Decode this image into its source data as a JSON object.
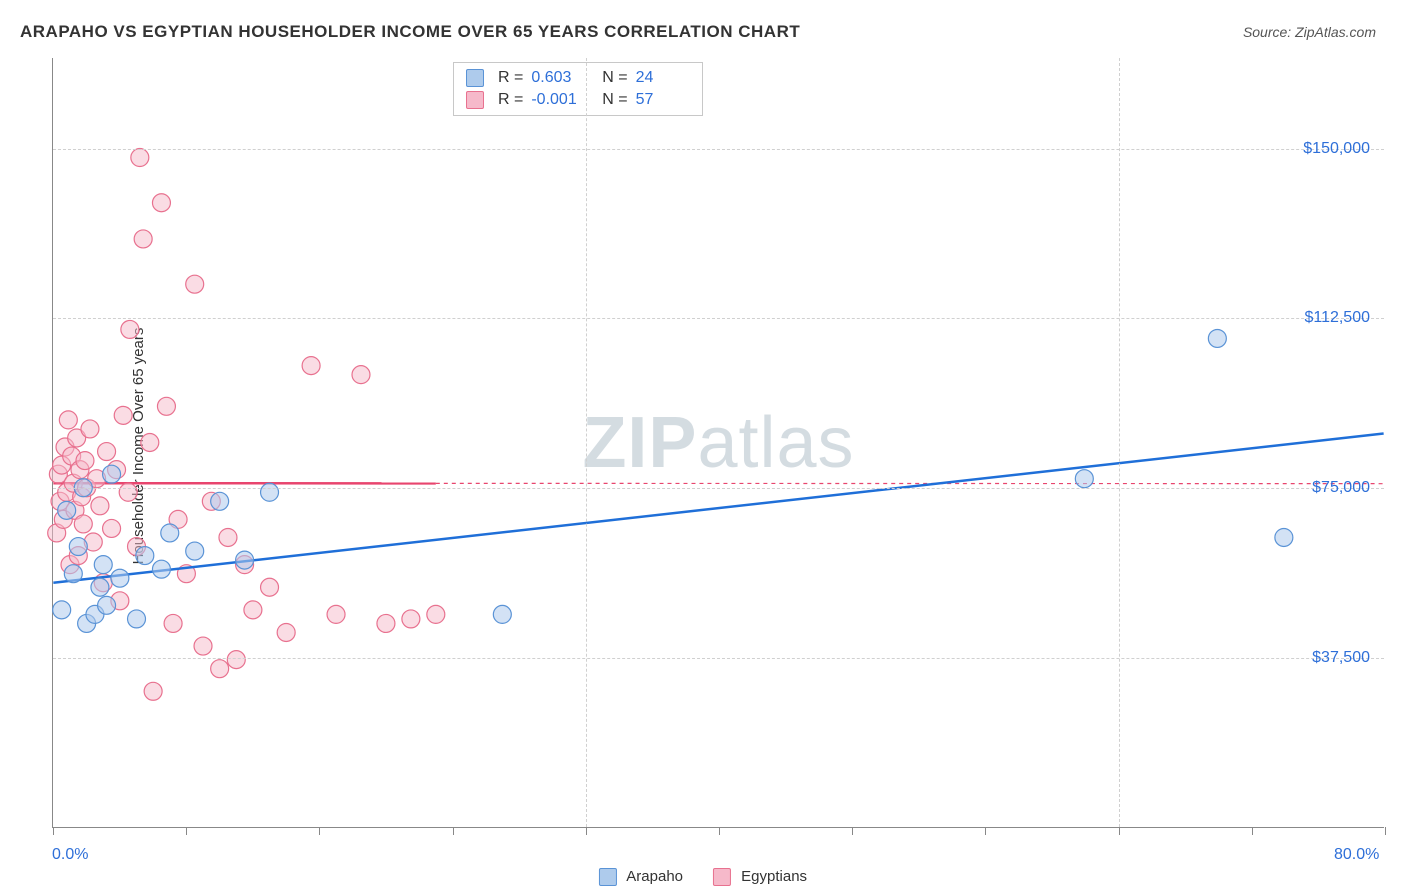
{
  "title": "ARAPAHO VS EGYPTIAN HOUSEHOLDER INCOME OVER 65 YEARS CORRELATION CHART",
  "source": "Source: ZipAtlas.com",
  "yaxis_title": "Householder Income Over 65 years",
  "watermark_a": "ZIP",
  "watermark_b": "atlas",
  "chart": {
    "type": "scatter",
    "xlim": [
      0,
      80
    ],
    "ylim": [
      0,
      170000
    ],
    "x_unit": "%",
    "y_unit": "$",
    "ytick_values": [
      37500,
      75000,
      112500,
      150000
    ],
    "ytick_labels": [
      "$37,500",
      "$75,000",
      "$112,500",
      "$150,000"
    ],
    "xtick_positions": [
      0,
      8,
      16,
      24,
      32,
      40,
      48,
      56,
      64,
      72,
      80
    ],
    "xlabel_min": "0.0%",
    "xlabel_max": "80.0%",
    "grid_color": "#d0d0d0",
    "background_color": "#ffffff",
    "marker_radius": 9,
    "marker_stroke_width": 1.2,
    "trend_line_width": 2.5,
    "trend_dash_width": 1.2,
    "series": [
      {
        "name": "Arapaho",
        "fill": "#aecbec",
        "stroke": "#5a93d6",
        "fill_opacity": 0.55,
        "r_value": "0.603",
        "n_value": "24",
        "trend": {
          "y_at_xmin": 54000,
          "y_at_xmax": 87000,
          "solid_until_x": 80,
          "line_color": "#1f6fd8"
        },
        "points": [
          [
            0.5,
            48000
          ],
          [
            0.8,
            70000
          ],
          [
            1.2,
            56000
          ],
          [
            1.5,
            62000
          ],
          [
            1.8,
            75000
          ],
          [
            2.0,
            45000
          ],
          [
            2.5,
            47000
          ],
          [
            2.8,
            53000
          ],
          [
            3.0,
            58000
          ],
          [
            3.2,
            49000
          ],
          [
            3.5,
            78000
          ],
          [
            4.0,
            55000
          ],
          [
            5.0,
            46000
          ],
          [
            5.5,
            60000
          ],
          [
            6.5,
            57000
          ],
          [
            7.0,
            65000
          ],
          [
            8.5,
            61000
          ],
          [
            10.0,
            72000
          ],
          [
            11.5,
            59000
          ],
          [
            13.0,
            74000
          ],
          [
            27.0,
            47000
          ],
          [
            62.0,
            77000
          ],
          [
            70.0,
            108000
          ],
          [
            74.0,
            64000
          ]
        ]
      },
      {
        "name": "Egyptians",
        "fill": "#f6b9ca",
        "stroke": "#e8718f",
        "fill_opacity": 0.5,
        "r_value": "-0.001",
        "n_value": "57",
        "trend": {
          "y_at_xmin": 76000,
          "y_at_xmax": 75900,
          "solid_until_x": 23,
          "line_color": "#e8456e"
        },
        "points": [
          [
            0.2,
            65000
          ],
          [
            0.3,
            78000
          ],
          [
            0.4,
            72000
          ],
          [
            0.5,
            80000
          ],
          [
            0.6,
            68000
          ],
          [
            0.7,
            84000
          ],
          [
            0.8,
            74000
          ],
          [
            0.9,
            90000
          ],
          [
            1.0,
            58000
          ],
          [
            1.1,
            82000
          ],
          [
            1.2,
            76000
          ],
          [
            1.3,
            70000
          ],
          [
            1.4,
            86000
          ],
          [
            1.5,
            60000
          ],
          [
            1.6,
            79000
          ],
          [
            1.7,
            73000
          ],
          [
            1.8,
            67000
          ],
          [
            1.9,
            81000
          ],
          [
            2.0,
            75000
          ],
          [
            2.2,
            88000
          ],
          [
            2.4,
            63000
          ],
          [
            2.6,
            77000
          ],
          [
            2.8,
            71000
          ],
          [
            3.0,
            54000
          ],
          [
            3.2,
            83000
          ],
          [
            3.5,
            66000
          ],
          [
            3.8,
            79000
          ],
          [
            4.0,
            50000
          ],
          [
            4.2,
            91000
          ],
          [
            4.5,
            74000
          ],
          [
            4.6,
            110000
          ],
          [
            5.0,
            62000
          ],
          [
            5.2,
            148000
          ],
          [
            5.4,
            130000
          ],
          [
            5.8,
            85000
          ],
          [
            6.0,
            30000
          ],
          [
            6.5,
            138000
          ],
          [
            6.8,
            93000
          ],
          [
            7.2,
            45000
          ],
          [
            7.5,
            68000
          ],
          [
            8.0,
            56000
          ],
          [
            8.5,
            120000
          ],
          [
            9.0,
            40000
          ],
          [
            9.5,
            72000
          ],
          [
            10.0,
            35000
          ],
          [
            10.5,
            64000
          ],
          [
            11.0,
            37000
          ],
          [
            11.5,
            58000
          ],
          [
            12.0,
            48000
          ],
          [
            13.0,
            53000
          ],
          [
            14.0,
            43000
          ],
          [
            15.5,
            102000
          ],
          [
            17.0,
            47000
          ],
          [
            18.5,
            100000
          ],
          [
            20.0,
            45000
          ],
          [
            21.5,
            46000
          ],
          [
            23.0,
            47000
          ]
        ]
      }
    ]
  },
  "legend": {
    "items": [
      {
        "label": "Arapaho",
        "fill": "#aecbec",
        "stroke": "#5a93d6"
      },
      {
        "label": "Egyptians",
        "fill": "#f6b9ca",
        "stroke": "#e8718f"
      }
    ]
  }
}
